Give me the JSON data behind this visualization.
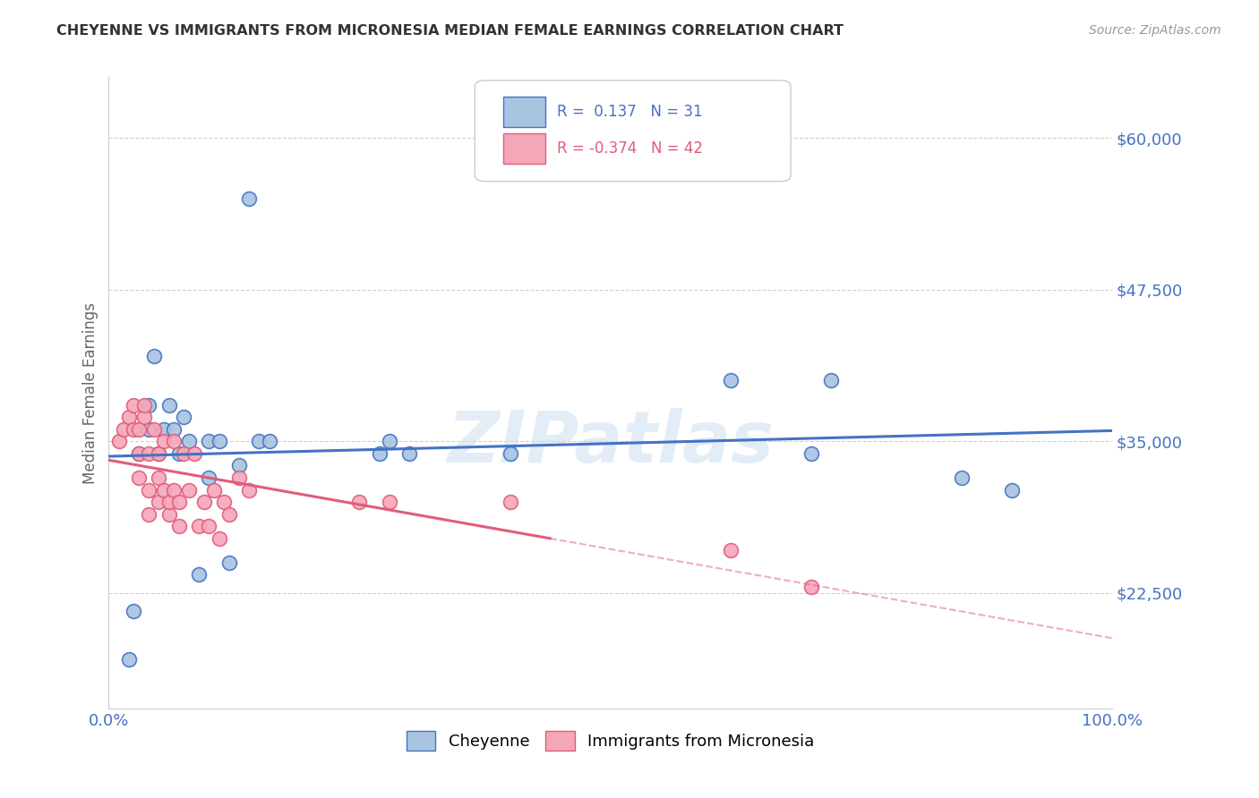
{
  "title": "CHEYENNE VS IMMIGRANTS FROM MICRONESIA MEDIAN FEMALE EARNINGS CORRELATION CHART",
  "source": "Source: ZipAtlas.com",
  "ylabel": "Median Female Earnings",
  "xlim": [
    0.0,
    1.0
  ],
  "ylim": [
    13000,
    65000
  ],
  "yticks": [
    22500,
    35000,
    47500,
    60000
  ],
  "ytick_labels": [
    "$22,500",
    "$35,000",
    "$47,500",
    "$60,000"
  ],
  "xticks": [
    0.0,
    1.0
  ],
  "xtick_labels": [
    "0.0%",
    "100.0%"
  ],
  "cheyenne_color": "#a8c4e0",
  "micronesia_color": "#f4a7b9",
  "cheyenne_line_color": "#4472c4",
  "micronesia_line_color": "#e05c7a",
  "R_cheyenne": 0.137,
  "N_cheyenne": 31,
  "R_micronesia": -0.374,
  "N_micronesia": 42,
  "watermark": "ZIPatlas",
  "legend_label_cheyenne": "Cheyenne",
  "legend_label_micronesia": "Immigrants from Micronesia",
  "cheyenne_x": [
    0.02,
    0.025,
    0.03,
    0.04,
    0.04,
    0.045,
    0.05,
    0.055,
    0.06,
    0.065,
    0.07,
    0.075,
    0.08,
    0.09,
    0.1,
    0.1,
    0.11,
    0.12,
    0.13,
    0.14,
    0.15,
    0.16,
    0.27,
    0.28,
    0.3,
    0.4,
    0.62,
    0.7,
    0.72,
    0.85,
    0.9
  ],
  "cheyenne_y": [
    17000,
    21000,
    34000,
    36000,
    38000,
    42000,
    34000,
    36000,
    38000,
    36000,
    34000,
    37000,
    35000,
    24000,
    32000,
    35000,
    35000,
    25000,
    33000,
    55000,
    35000,
    35000,
    34000,
    35000,
    34000,
    34000,
    40000,
    34000,
    40000,
    32000,
    31000
  ],
  "micronesia_x": [
    0.01,
    0.015,
    0.02,
    0.025,
    0.025,
    0.03,
    0.03,
    0.03,
    0.035,
    0.035,
    0.04,
    0.04,
    0.04,
    0.045,
    0.05,
    0.05,
    0.05,
    0.055,
    0.055,
    0.06,
    0.06,
    0.065,
    0.065,
    0.07,
    0.07,
    0.075,
    0.08,
    0.085,
    0.09,
    0.095,
    0.1,
    0.105,
    0.11,
    0.115,
    0.12,
    0.13,
    0.14,
    0.25,
    0.28,
    0.4,
    0.62,
    0.7
  ],
  "micronesia_y": [
    35000,
    36000,
    37000,
    36000,
    38000,
    32000,
    34000,
    36000,
    37000,
    38000,
    29000,
    31000,
    34000,
    36000,
    30000,
    32000,
    34000,
    31000,
    35000,
    29000,
    30000,
    31000,
    35000,
    28000,
    30000,
    34000,
    31000,
    34000,
    28000,
    30000,
    28000,
    31000,
    27000,
    30000,
    29000,
    32000,
    31000,
    30000,
    30000,
    30000,
    26000,
    23000
  ],
  "grid_color": "#d0d0d0",
  "background_color": "#ffffff",
  "title_color": "#333333",
  "tick_label_color": "#4472c4"
}
